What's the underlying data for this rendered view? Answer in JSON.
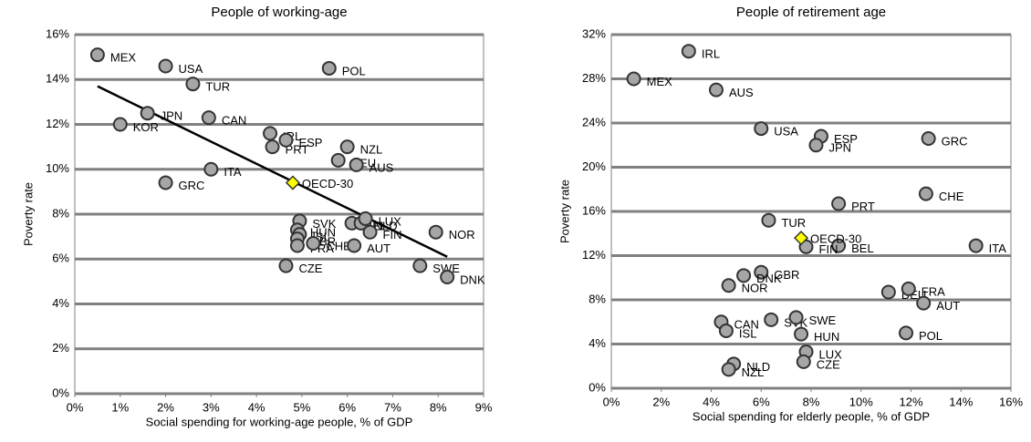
{
  "chart_data": [
    {
      "type": "scatter",
      "title": "People of working-age",
      "x_label": "Social spending for working-age people,  % of GDP",
      "y_label": "Poverty rate",
      "xlim": [
        0,
        9
      ],
      "ylim": [
        0,
        16
      ],
      "xticks": [
        {
          "value": 0,
          "label": "0%"
        },
        {
          "value": 1,
          "label": "1%"
        },
        {
          "value": 2,
          "label": "2%"
        },
        {
          "value": 3,
          "label": "3%"
        },
        {
          "value": 4,
          "label": "4%"
        },
        {
          "value": 5,
          "label": "5%"
        },
        {
          "value": 6,
          "label": "6%"
        },
        {
          "value": 7,
          "label": "7%"
        },
        {
          "value": 8,
          "label": "8%"
        },
        {
          "value": 9,
          "label": "9%"
        }
      ],
      "yticks": [
        {
          "value": 0,
          "label": "0%"
        },
        {
          "value": 2,
          "label": "2%"
        },
        {
          "value": 4,
          "label": "4%"
        },
        {
          "value": 6,
          "label": "6%"
        },
        {
          "value": 8,
          "label": "8%"
        },
        {
          "value": 10,
          "label": "10%"
        },
        {
          "value": 12,
          "label": "12%"
        },
        {
          "value": 14,
          "label": "14%"
        },
        {
          "value": 16,
          "label": "16%"
        }
      ],
      "grid": true,
      "color": "#a6a6a6",
      "labels": [
        "MEX",
        "USA",
        "TUR",
        "POL",
        "JPN",
        "KOR",
        "CAN",
        "IRL",
        "PRT",
        "ESP",
        "NZL",
        "DEU",
        "AUS",
        "ITA",
        "GRC",
        "SVK",
        "HUN",
        "ISL",
        "GBR",
        "FRA",
        "CHE",
        "CZE",
        "BEL",
        "NLD",
        "LUX",
        "FIN",
        "AUT",
        "NOR",
        "SWE",
        "DNK"
      ],
      "x": [
        0.5,
        2.0,
        2.6,
        5.6,
        1.6,
        1.0,
        2.95,
        4.3,
        4.35,
        4.65,
        6.0,
        5.8,
        6.2,
        3.0,
        2.0,
        4.95,
        4.9,
        4.95,
        4.9,
        4.9,
        5.25,
        4.65,
        6.1,
        6.3,
        6.4,
        6.5,
        6.15,
        7.95,
        7.6,
        8.2
      ],
      "values": [
        15.1,
        14.6,
        13.8,
        14.5,
        12.5,
        12.0,
        12.3,
        11.6,
        11.0,
        11.3,
        11.0,
        10.4,
        10.2,
        10.0,
        9.4,
        7.7,
        7.3,
        7.1,
        6.9,
        6.6,
        6.7,
        5.7,
        7.6,
        7.6,
        7.8,
        7.2,
        6.6,
        7.2,
        5.7,
        5.2
      ],
      "oecd": {
        "label": "OECD-30",
        "x": 4.8,
        "value": 9.4,
        "color": "#ffff00"
      },
      "trend": {
        "x": [
          0.5,
          8.2
        ],
        "values": [
          13.7,
          6.1
        ],
        "color": "#000000"
      }
    },
    {
      "type": "scatter",
      "title": "People of retirement age",
      "x_label": "Social  spending for elderly people, % of GDP",
      "y_label": "Poverty rate",
      "xlim": [
        0,
        16
      ],
      "ylim": [
        0,
        32
      ],
      "xticks": [
        {
          "value": 0,
          "label": "0%"
        },
        {
          "value": 2,
          "label": "2%"
        },
        {
          "value": 4,
          "label": "4%"
        },
        {
          "value": 6,
          "label": "6%"
        },
        {
          "value": 8,
          "label": "8%"
        },
        {
          "value": 10,
          "label": "10%"
        },
        {
          "value": 12,
          "label": "12%"
        },
        {
          "value": 14,
          "label": "14%"
        },
        {
          "value": 16,
          "label": "16%"
        }
      ],
      "yticks": [
        {
          "value": 0,
          "label": "0%"
        },
        {
          "value": 4,
          "label": "4%"
        },
        {
          "value": 8,
          "label": "8%"
        },
        {
          "value": 12,
          "label": "12%"
        },
        {
          "value": 16,
          "label": "16%"
        },
        {
          "value": 20,
          "label": "20%"
        },
        {
          "value": 24,
          "label": "24%"
        },
        {
          "value": 28,
          "label": "28%"
        },
        {
          "value": 32,
          "label": "32%"
        }
      ],
      "grid": true,
      "color": "#a6a6a6",
      "labels": [
        "IRL",
        "MEX",
        "AUS",
        "USA",
        "ESP",
        "JPN",
        "GRC",
        "CHE",
        "PRT",
        "TUR",
        "BEL",
        "FIN",
        "ITA",
        "GBR",
        "DNK",
        "NOR",
        "DEU",
        "FRA",
        "AUT",
        "CAN",
        "SVK",
        "SWE",
        "ISL",
        "HUN",
        "POL",
        "LUX",
        "NLD",
        "NZL",
        "CZE"
      ],
      "x": [
        3.1,
        0.9,
        4.2,
        6.0,
        8.4,
        8.2,
        12.7,
        12.6,
        9.1,
        6.3,
        9.1,
        7.8,
        14.6,
        6.0,
        5.3,
        4.7,
        11.1,
        11.9,
        12.5,
        4.4,
        6.4,
        7.4,
        4.6,
        7.6,
        11.8,
        7.8,
        4.9,
        4.7,
        7.7
      ],
      "values": [
        30.5,
        28.0,
        27.0,
        23.5,
        22.8,
        22.0,
        22.6,
        17.6,
        16.7,
        15.2,
        12.9,
        12.8,
        12.9,
        10.5,
        10.2,
        9.3,
        8.7,
        9.0,
        7.7,
        6.0,
        6.2,
        6.4,
        5.2,
        4.9,
        5.0,
        3.3,
        2.2,
        1.7,
        2.4
      ],
      "oecd": {
        "label": "OECD-30",
        "x": 7.6,
        "value": 13.6,
        "color": "#ffff00"
      }
    }
  ]
}
